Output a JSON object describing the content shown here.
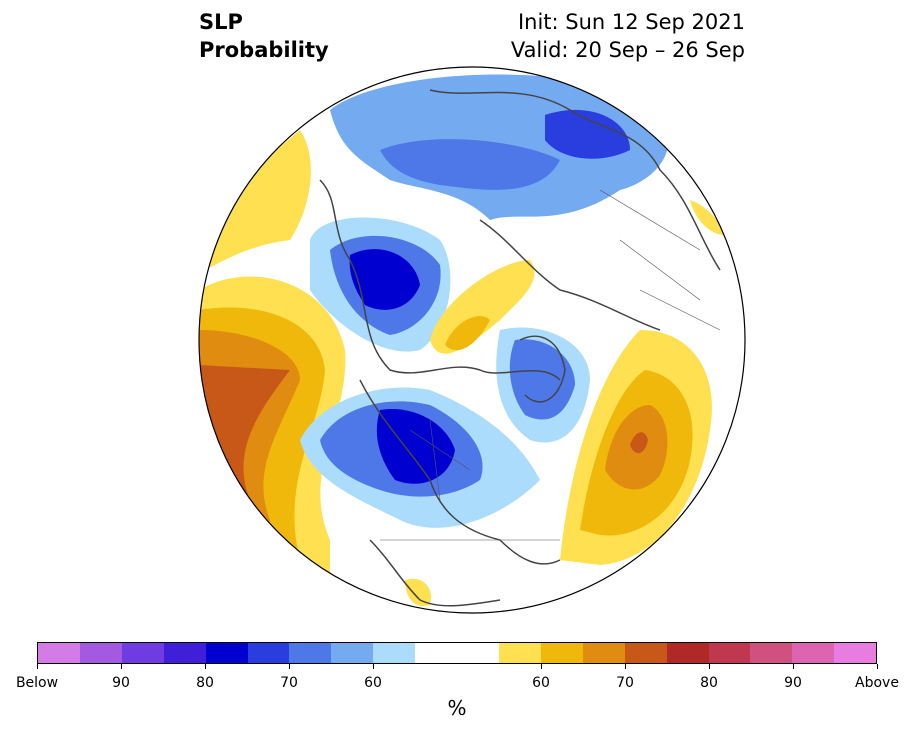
{
  "title": {
    "line1": "SLP",
    "line2": "Probability"
  },
  "info": {
    "init": "Init: Sun 12 Sep 2021",
    "valid": "Valid: 20 Sep – 26 Sep"
  },
  "colorbar": {
    "colors": [
      "#d57be8",
      "#a45ae0",
      "#6e3ce0",
      "#3f1fd8",
      "#0000d0",
      "#2a3ee0",
      "#4e78e8",
      "#74aaf0",
      "#acdcfc",
      "#ffffff",
      "#ffffff",
      "#ffe050",
      "#f0b80a",
      "#e08c10",
      "#c85818",
      "#b02828",
      "#c03850",
      "#d05080",
      "#dc64b0",
      "#e87ce0"
    ],
    "tick_labels": [
      "Below",
      "90",
      "80",
      "70",
      "60",
      "60",
      "70",
      "80",
      "90",
      "Above"
    ],
    "unit": "%"
  },
  "map": {
    "projection": "north-polar-stereographic",
    "colors": {
      "strong_below": "#0000d0",
      "below": "#4e78e8",
      "weak_below": "#acdcfc",
      "weak_above": "#ffe050",
      "above": "#f0b80a",
      "strong_above": "#c85818",
      "coast": "#444444"
    }
  }
}
